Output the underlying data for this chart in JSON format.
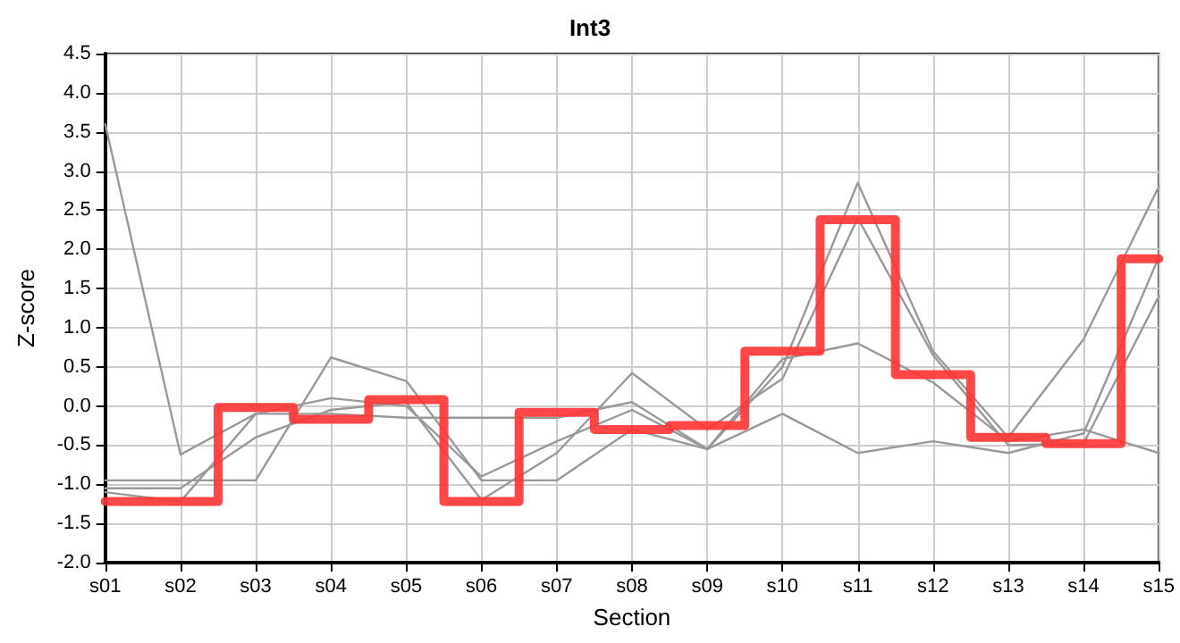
{
  "chart_data": {
    "type": "line",
    "title": "Int3",
    "xlabel": "Section",
    "ylabel": "Z-score",
    "categories": [
      "s01",
      "s02",
      "s03",
      "s04",
      "s05",
      "s06",
      "s07",
      "s08",
      "s09",
      "s10",
      "s11",
      "s12",
      "s13",
      "s14",
      "s15"
    ],
    "series": [
      {
        "color": "#999999",
        "values": [
          3.6,
          -0.62,
          -0.1,
          0.1,
          0.0,
          -0.9,
          -0.45,
          -0.05,
          -0.55,
          0.5,
          2.85,
          0.7,
          -0.4,
          0.85,
          2.8
        ]
      },
      {
        "color": "#999999",
        "values": [
          -0.95,
          -0.95,
          -0.95,
          0.62,
          0.32,
          -0.95,
          -0.95,
          -0.3,
          -0.55,
          0.6,
          0.8,
          0.3,
          -0.45,
          -0.3,
          -0.6
        ]
      },
      {
        "color": "#999999",
        "values": [
          -1.05,
          -1.05,
          -0.4,
          -0.05,
          0.05,
          -1.2,
          -0.6,
          0.42,
          -0.3,
          0.35,
          2.4,
          0.65,
          -0.5,
          -0.48,
          1.4
        ]
      },
      {
        "color": "#999999",
        "values": [
          -1.1,
          -1.22,
          -0.1,
          -0.1,
          -0.15,
          -0.15,
          -0.15,
          0.05,
          -0.55,
          -0.1,
          -0.6,
          -0.45,
          -0.6,
          -0.35,
          1.9
        ]
      },
      {
        "type": "step",
        "color": "#ff3333",
        "values": [
          -1.22,
          -1.22,
          -0.02,
          -0.17,
          0.08,
          -1.22,
          -0.08,
          -0.3,
          -0.25,
          0.7,
          2.38,
          0.4,
          -0.4,
          -0.48,
          1.88
        ]
      }
    ],
    "ylim": [
      -2.0,
      4.5
    ],
    "yticks": [
      {
        "value": -2,
        "label": "-2.0"
      },
      {
        "value": -1.5,
        "label": "-1.5"
      },
      {
        "value": -1,
        "label": "-1.0"
      },
      {
        "value": -0.5,
        "label": "-0.5"
      },
      {
        "value": 0,
        "label": "0.0"
      },
      {
        "value": 0.5,
        "label": "0.5"
      },
      {
        "value": 1,
        "label": "1.0"
      },
      {
        "value": 1.5,
        "label": "1.5"
      },
      {
        "value": 2,
        "label": "2.0"
      },
      {
        "value": 2.5,
        "label": "2.5"
      },
      {
        "value": 3,
        "label": "3.0"
      },
      {
        "value": 3.5,
        "label": "3.5"
      },
      {
        "value": 4,
        "label": "4.0"
      },
      {
        "value": 4.5,
        "label": "4.5"
      }
    ],
    "grid": true,
    "marker": "none",
    "line_style": "solid"
  }
}
